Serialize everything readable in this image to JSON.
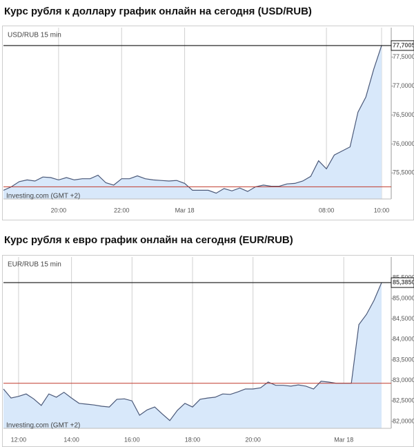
{
  "chart_data": [
    {
      "type": "line",
      "title": "Курс рубля к доллару график онлайн на сегодня (USD/RUB)",
      "subtitle": "USD/RUB 15 min",
      "note": "Investing.com (GMT +2)",
      "categories": [
        null,
        null,
        null,
        null,
        null,
        null,
        null,
        "20:00",
        null,
        null,
        null,
        null,
        null,
        null,
        null,
        "22:00",
        null,
        null,
        null,
        null,
        null,
        null,
        null,
        "Mar 18",
        null,
        null,
        null,
        null,
        null,
        null,
        null,
        null,
        null,
        null,
        null,
        null,
        null,
        null,
        null,
        null,
        null,
        "08:00",
        null,
        null,
        null,
        null,
        null,
        null,
        "10:00"
      ],
      "values": [
        75.2,
        75.26,
        75.35,
        75.38,
        75.36,
        75.43,
        75.42,
        75.38,
        75.42,
        75.38,
        75.4,
        75.4,
        75.46,
        75.33,
        75.29,
        75.4,
        75.4,
        75.45,
        75.4,
        75.38,
        75.37,
        75.36,
        75.37,
        75.32,
        75.2,
        75.2,
        75.2,
        75.15,
        75.23,
        75.19,
        75.24,
        75.18,
        75.26,
        75.29,
        75.27,
        75.27,
        75.31,
        75.32,
        75.36,
        75.44,
        75.71,
        75.57,
        75.81,
        75.88,
        75.95,
        76.55,
        76.81,
        77.29,
        77.7005
      ],
      "value_labels": [
        null,
        null,
        null,
        null,
        null,
        null,
        null,
        null,
        null,
        null,
        null,
        null,
        null,
        null,
        null,
        null,
        null,
        null,
        null,
        null,
        null,
        null,
        null,
        null,
        null,
        null,
        null,
        null,
        null,
        null,
        null,
        null,
        null,
        null,
        null,
        null,
        null,
        null,
        null,
        null,
        null,
        null,
        null,
        null,
        null,
        null,
        null,
        null,
        "77,7005"
      ],
      "color": "#4a5878",
      "fill": "#d8e8fa",
      "reference_line": {
        "value": 75.26,
        "color": "#c0392b"
      },
      "ylim": [
        75.05,
        78.01
      ],
      "yticks": [
        {
          "value": 75.5,
          "label": "75,5000"
        },
        {
          "value": 76,
          "label": "76,0000"
        },
        {
          "value": 76.5,
          "label": "76,5000"
        },
        {
          "value": 77,
          "label": "77,0000"
        },
        {
          "value": 77.5,
          "label": "77,5000"
        }
      ]
    },
    {
      "type": "line",
      "title": "Курс рубля к евро график онлайн на сегодня (EUR/RUB)",
      "subtitle": "EUR/RUB 15 min",
      "note": "Investing.com (GMT +2)",
      "categories": [
        null,
        null,
        "12:00",
        null,
        null,
        null,
        null,
        null,
        null,
        "14:00",
        null,
        null,
        null,
        null,
        null,
        null,
        null,
        "16:00",
        null,
        null,
        null,
        null,
        null,
        null,
        null,
        "18:00",
        null,
        null,
        null,
        null,
        null,
        null,
        null,
        "20:00",
        null,
        null,
        null,
        null,
        null,
        null,
        null,
        null,
        null,
        null,
        null,
        "Mar 18",
        null,
        null,
        null,
        null,
        null
      ],
      "values": [
        82.79,
        82.57,
        82.61,
        82.67,
        82.55,
        82.39,
        82.67,
        82.59,
        82.71,
        82.57,
        82.44,
        82.42,
        82.4,
        82.37,
        82.35,
        82.54,
        82.55,
        82.5,
        82.15,
        82.28,
        82.35,
        82.18,
        82.02,
        82.27,
        82.44,
        82.35,
        82.54,
        82.57,
        82.59,
        82.67,
        82.66,
        82.72,
        82.79,
        82.79,
        82.82,
        82.96,
        82.88,
        82.88,
        82.86,
        82.89,
        82.86,
        82.79,
        82.98,
        82.96,
        82.93,
        82.93,
        82.93,
        84.36,
        84.61,
        84.95,
        85.385
      ],
      "value_labels": [
        null,
        null,
        null,
        null,
        null,
        null,
        null,
        null,
        null,
        null,
        null,
        null,
        null,
        null,
        null,
        null,
        null,
        null,
        null,
        null,
        null,
        null,
        null,
        null,
        null,
        null,
        null,
        null,
        null,
        null,
        null,
        null,
        null,
        null,
        null,
        null,
        null,
        null,
        null,
        null,
        null,
        null,
        null,
        null,
        null,
        null,
        null,
        null,
        null,
        null,
        "85,3850"
      ],
      "color": "#4a5878",
      "fill": "#d8e8fa",
      "reference_line": {
        "value": 82.93,
        "color": "#c0392b"
      },
      "ylim": [
        81.83,
        86.01
      ],
      "yticks": [
        {
          "value": 82,
          "label": "82,0000"
        },
        {
          "value": 82.5,
          "label": "82,5000"
        },
        {
          "value": 83,
          "label": "83,0000"
        },
        {
          "value": 83.5,
          "label": "83,5000"
        },
        {
          "value": 84,
          "label": "84,0000"
        },
        {
          "value": 84.5,
          "label": "84,5000"
        },
        {
          "value": 85,
          "label": "85,0000"
        },
        {
          "value": 85.5,
          "label": "85,5000"
        }
      ]
    }
  ]
}
